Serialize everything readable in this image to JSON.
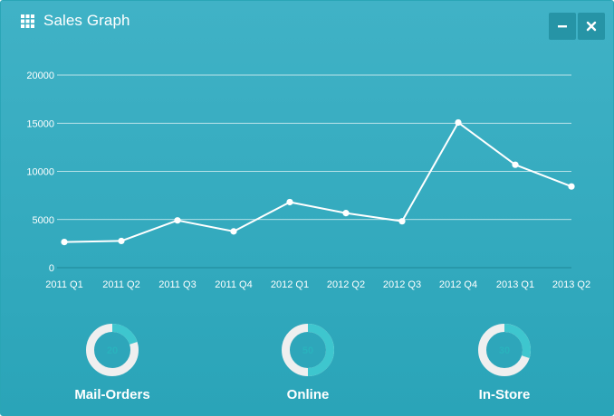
{
  "header": {
    "title": "Sales Graph",
    "icon": "grid-icon",
    "minimize_icon": "minus-icon",
    "close_icon": "close-icon"
  },
  "colors": {
    "panel_top": "#40b2c6",
    "panel_bottom": "#2aa4b8",
    "button_bg": "#2694a6",
    "knob_fill": "#3ec6ce",
    "knob_track": "#efefef",
    "knob_text": "#2ab2bd"
  },
  "chart_data": {
    "type": "line",
    "title": "",
    "xlabel": "",
    "ylabel": "",
    "ylim": [
      0,
      20000
    ],
    "yticks": [
      "20000",
      "15000",
      "10000",
      "5000",
      "0"
    ],
    "ytick_values": [
      20000,
      15000,
      10000,
      5000,
      0
    ],
    "categories": [
      "2011 Q1",
      "2011 Q2",
      "2011 Q3",
      "2011 Q4",
      "2012 Q1",
      "2012 Q2",
      "2012 Q3",
      "2012 Q4",
      "2013 Q1",
      "2013 Q2"
    ],
    "series": [
      {
        "name": "Sales",
        "values": [
          2666,
          2778,
          4912,
          3767,
          6810,
          5670,
          4820,
          15073,
          10687,
          8432
        ]
      }
    ],
    "grid": true,
    "legend": "none"
  },
  "knobs": [
    {
      "label": "Mail-Orders",
      "value": 20
    },
    {
      "label": "Online",
      "value": 50
    },
    {
      "label": "In-Store",
      "value": 30
    }
  ]
}
